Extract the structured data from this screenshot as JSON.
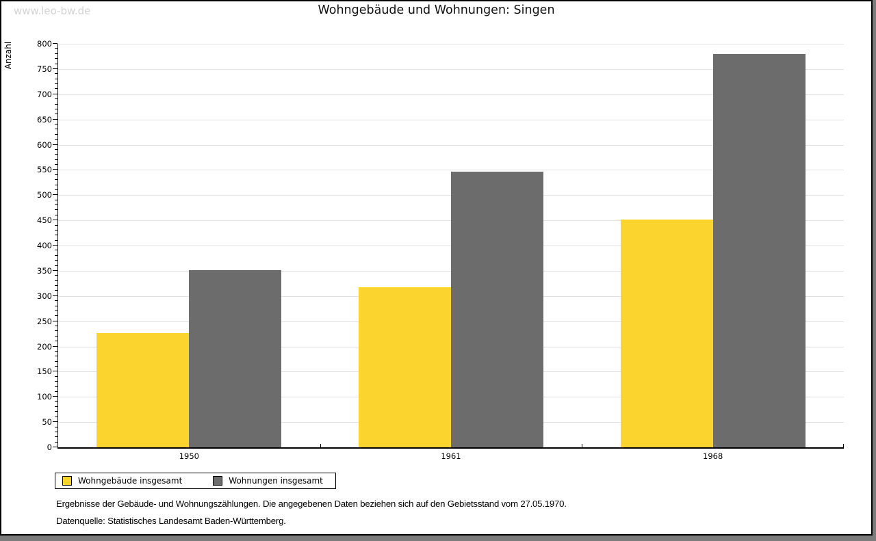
{
  "watermark": "www.leo-bw.de",
  "chart_data": {
    "type": "bar",
    "title": "Wohngebäude und Wohnungen: Singen",
    "ylabel": "Anzahl",
    "xlabel": "",
    "categories": [
      "1950",
      "1961",
      "1968"
    ],
    "series": [
      {
        "name": "Wohngebäude insgesamt",
        "color": "#fcd42e",
        "values": [
          227,
          317,
          452
        ]
      },
      {
        "name": "Wohnungen insgesamt",
        "color": "#6c6c6c",
        "values": [
          351,
          546,
          780
        ]
      }
    ],
    "ylim": [
      0,
      800
    ],
    "ytick_step": 50,
    "ytick_minor_step": 10,
    "grid": true,
    "grid_color": "#e0e0e0",
    "legend_position": "bottom-left"
  },
  "footer": {
    "line1": "Ergebnisse der Gebäude- und Wohnungszählungen. Die angegebenen Daten beziehen sich auf den Gebietsstand vom 27.05.1970.",
    "line2": "Datenquelle: Statistisches Landesamt Baden-Württemberg."
  }
}
